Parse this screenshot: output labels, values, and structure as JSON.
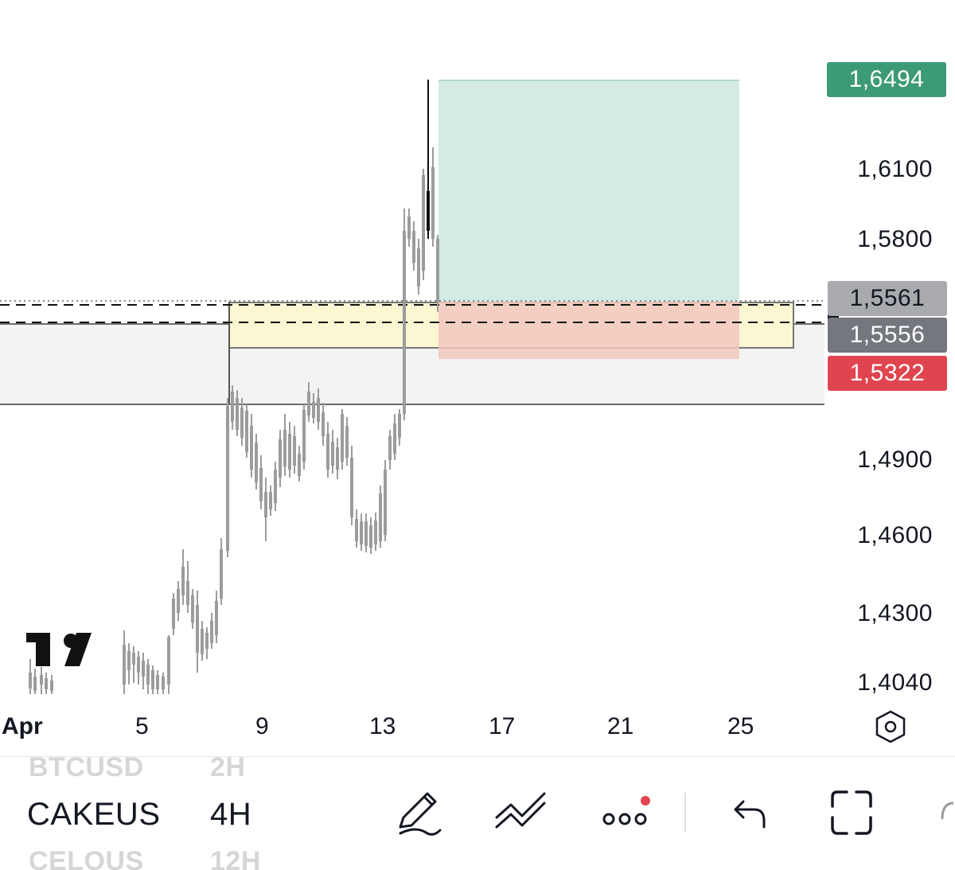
{
  "chart_data": {
    "type": "candlestick",
    "symbol": "CAKEUS",
    "interval": "4H",
    "x_ticks": [
      "Apr",
      "5",
      "9",
      "13",
      "17",
      "21",
      "25"
    ],
    "y_ticks": [
      "1,6100",
      "1,5800",
      "1,4900",
      "1,4600",
      "1,4300",
      "1,4040"
    ],
    "price_tags": {
      "take_profit": "1,6494",
      "current_price": "1,5561",
      "entry": "1,5556",
      "stop_loss": "1,5322"
    },
    "colors": {
      "take_profit": "#3d9a76",
      "current_price": "#a9aaae",
      "entry": "#75777f",
      "stop_loss": "#e0454f",
      "profit_zone": "#cfe9e2",
      "loss_zone": "#f2c8bd",
      "yellow_zone": "#fbf7d3",
      "gray_zone": "#f3f3f3"
    }
  },
  "bottom_bar": {
    "symbols": {
      "prev": "BTCUSD",
      "current": "CAKEUS",
      "next": "CELOUS"
    },
    "intervals": {
      "prev": "2H",
      "current": "4H",
      "next": "12H"
    },
    "tools": [
      "pen-icon",
      "trend-line-icon",
      "more-icon",
      "undo-icon",
      "fullscreen-icon"
    ]
  },
  "icons": {
    "settings": "hexagon-gear-icon",
    "logo": "tradingview-logo"
  }
}
